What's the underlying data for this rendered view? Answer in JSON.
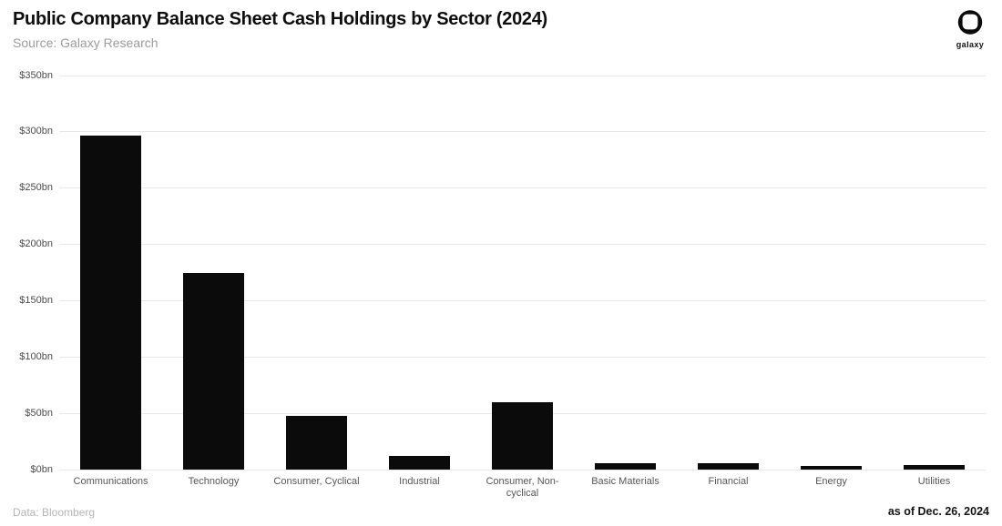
{
  "header": {
    "title": "Public Company Balance Sheet Cash Holdings by Sector (2024)",
    "subtitle": "Source: Galaxy Research",
    "logo_text": "galaxy"
  },
  "footer": {
    "data_source": "Data: Bloomberg",
    "as_of": "as of Dec. 26, 2024"
  },
  "colors": {
    "bar": "#0b0b0b",
    "grid": "#e8e8e8",
    "axis_label": "#4c4c4c",
    "x_label": "#565656",
    "subtitle": "#9b9b9b",
    "footer_muted": "#b4b4b4",
    "logo": "#0a0a0a"
  },
  "chart_data": {
    "type": "bar",
    "title": "Public Company Balance Sheet Cash Holdings by Sector (2024)",
    "subtitle": "Source: Galaxy Research",
    "categories": [
      "Communications",
      "Technology",
      "Consumer, Cyclical",
      "Industrial",
      "Consumer, Non-cyclical",
      "Basic Materials",
      "Financial",
      "Energy",
      "Utilities"
    ],
    "values": [
      297,
      175,
      48,
      12,
      60,
      6,
      6,
      3,
      4
    ],
    "unit": "bn USD",
    "ytick_prefix": "$",
    "ytick_suffix": "bn",
    "ytick_labels": [
      "$0bn",
      "$50bn",
      "$100bn",
      "$150bn",
      "$200bn",
      "$250bn",
      "$300bn",
      "$350bn"
    ],
    "ylim": [
      0,
      350
    ],
    "ytick_step": 50,
    "grid": true,
    "legend": null,
    "xlabel": "",
    "ylabel": ""
  }
}
